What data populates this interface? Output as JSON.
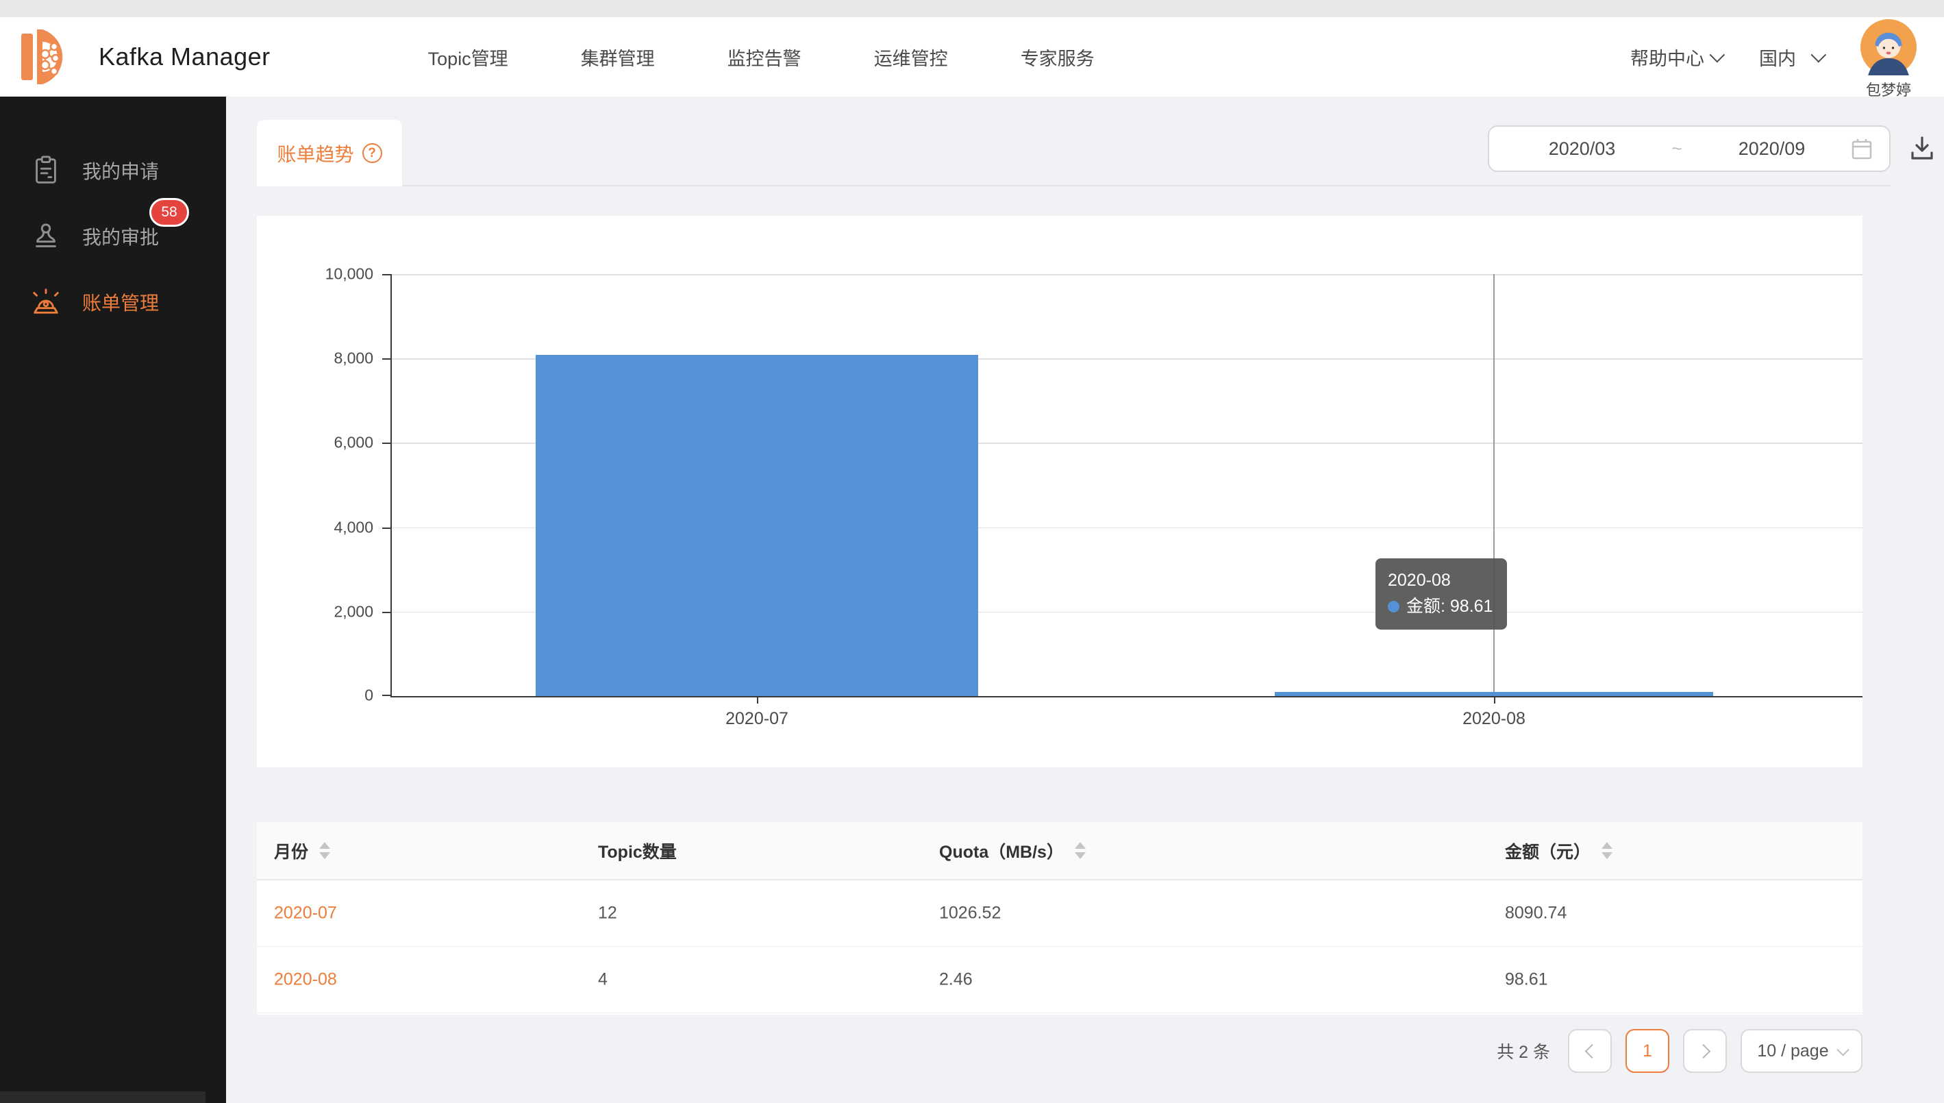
{
  "header": {
    "title": "Kafka Manager",
    "nav": [
      "Topic管理",
      "集群管理",
      "监控告警",
      "运维管控",
      "专家服务"
    ],
    "help_center": "帮助中心",
    "region": "国内",
    "username": "包梦婷"
  },
  "sidebar": {
    "items": [
      {
        "label": "我的申请",
        "icon": "clipboard-icon",
        "badge": "",
        "active": false
      },
      {
        "label": "我的审批",
        "icon": "stamp-icon",
        "badge": "58",
        "active": false
      },
      {
        "label": "账单管理",
        "icon": "alarm-icon",
        "badge": "",
        "active": true
      }
    ]
  },
  "billing": {
    "tab_label": "账单趋势",
    "help_icon": "question-circle-icon",
    "date_range": {
      "start": "2020/03",
      "separator": "~",
      "end": "2020/09"
    },
    "calendar_icon": "calendar-icon",
    "download_icon": "download-icon"
  },
  "chart_data": {
    "type": "bar",
    "title": "",
    "categories": [
      "2020-07",
      "2020-08"
    ],
    "series": [
      {
        "name": "金额",
        "values": [
          8090.74,
          98.61
        ]
      }
    ],
    "ylim": [
      0,
      10000
    ],
    "ytick_labels": [
      "10,000",
      "8,000",
      "6,000",
      "4,000",
      "2,000",
      "0"
    ],
    "grid": true,
    "legend": "none",
    "bar_color": "#5292d5",
    "crosshair_category": "2020-08",
    "tooltip": {
      "title": "2020-08",
      "series_name": "金额",
      "text": "金额: 98.61",
      "value": "98.61"
    }
  },
  "table": {
    "columns": [
      {
        "label": "月份",
        "sortable": true
      },
      {
        "label": "Topic数量",
        "sortable": false
      },
      {
        "label": "Quota（MB/s）",
        "sortable": true
      },
      {
        "label": "金额（元）",
        "sortable": true
      }
    ],
    "rows": [
      {
        "cells": [
          "2020-07",
          "12",
          "1026.52",
          "8090.74"
        ]
      },
      {
        "cells": [
          "2020-08",
          "4",
          "2.46",
          "98.61"
        ]
      }
    ]
  },
  "pagination": {
    "total": "共 2 条",
    "current_page": "1",
    "page_size": "10 / page"
  },
  "colors": {
    "accent_orange": "#ee7d3b",
    "bar_blue": "#5292d5",
    "badge_red": "#e5433e",
    "sidebar_bg": "#191919",
    "content_bg": "#f0f2f5"
  }
}
